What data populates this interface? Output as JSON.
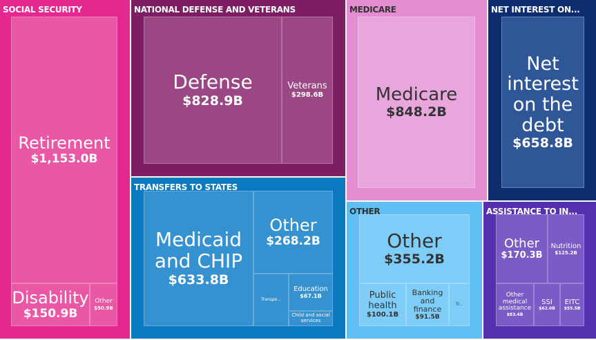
{
  "chart_data": {
    "type": "treemap",
    "groups": [
      {
        "name": "SOCIAL SECURITY",
        "color": "#e5288f",
        "children": [
          {
            "name": "Retirement",
            "value": "$1,153.0B"
          },
          {
            "name": "Disability",
            "value": "$150.9B"
          },
          {
            "name": "Other",
            "value": "$50.9B"
          }
        ]
      },
      {
        "name": "NATIONAL DEFENSE AND VETERANS",
        "color": "#7d1e63",
        "children": [
          {
            "name": "Defense",
            "value": "$828.9B"
          },
          {
            "name": "Veterans",
            "value": "$298.6B"
          }
        ]
      },
      {
        "name": "TRANSFERS TO STATES",
        "color": "#0b79bf",
        "children": [
          {
            "name": "Medicaid and CHIP",
            "value": "$633.8B"
          },
          {
            "name": "Other",
            "value": "$268.2B"
          },
          {
            "name": "Transpo..."
          },
          {
            "name": "Education",
            "value": "$67.1B"
          },
          {
            "name": "Child and social services"
          }
        ]
      },
      {
        "name": "MEDICARE",
        "color": "#e48dd3",
        "children": [
          {
            "name": "Medicare",
            "value": "$848.2B"
          }
        ]
      },
      {
        "name": "NET INTEREST ON...",
        "color": "#0d2d6e",
        "children": [
          {
            "name": "Net interest on the debt",
            "value": "$658.8B"
          }
        ]
      },
      {
        "name": "OTHER",
        "color": "#5fbff5",
        "children": [
          {
            "name": "Other",
            "value": "$355.2B"
          },
          {
            "name": "Public health",
            "value": "$100.1B"
          },
          {
            "name": "Banking and finance",
            "value": "$91.5B"
          },
          {
            "name": "Tr..."
          }
        ]
      },
      {
        "name": "ASSISTANCE TO IN...",
        "color": "#5430b0",
        "children": [
          {
            "name": "Other",
            "value": "$170.3B"
          },
          {
            "name": "Nutrition",
            "value": "$125.2B"
          },
          {
            "name": "Other medical assistance",
            "value": "$83.4B"
          },
          {
            "name": "SSI",
            "value": "$62.0B"
          },
          {
            "name": "EITC",
            "value": "$55.5B"
          }
        ]
      }
    ]
  }
}
